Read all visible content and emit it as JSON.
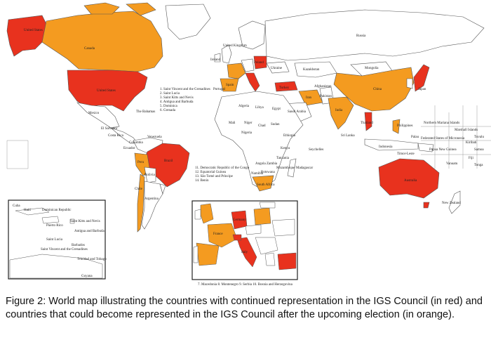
{
  "caption": "Figure 2: World map illustrating the countries with continued representation in the IGS Council (in red) and countries that could become represented in the IGS Council after the upcoming election (in orange).",
  "legend": {
    "red_meaning": "continued representation",
    "orange_meaning": "could become represented"
  },
  "colors": {
    "red": "#e8321e",
    "orange": "#f49b20",
    "land": "#ffffff",
    "border": "#555555"
  },
  "country_labels": [
    {
      "id": "usa",
      "text": "United States"
    },
    {
      "id": "canada",
      "text": "Canada"
    },
    {
      "id": "usa2",
      "text": "United States"
    },
    {
      "id": "russia",
      "text": "Russia"
    },
    {
      "id": "mongolia",
      "text": "Mongolia"
    },
    {
      "id": "china",
      "text": "China"
    },
    {
      "id": "kazakhstan",
      "text": "Kazakhstan"
    },
    {
      "id": "japan",
      "text": "Japan"
    },
    {
      "id": "india",
      "text": "India"
    },
    {
      "id": "iran",
      "text": "Iran"
    },
    {
      "id": "brazil",
      "text": "Brazil"
    },
    {
      "id": "argentina",
      "text": "Argentina"
    },
    {
      "id": "bolivia",
      "text": "Bolivia"
    },
    {
      "id": "peru",
      "text": "Peru"
    },
    {
      "id": "chile",
      "text": "Chile"
    },
    {
      "id": "colombia",
      "text": "Colombia"
    },
    {
      "id": "venezuela",
      "text": "Venezuela"
    },
    {
      "id": "australia",
      "text": "Australia"
    },
    {
      "id": "newzealand",
      "text": "New Zealand"
    },
    {
      "id": "southafrica",
      "text": "South Africa"
    },
    {
      "id": "algeria",
      "text": "Algeria"
    },
    {
      "id": "libya",
      "text": "Libya"
    },
    {
      "id": "egypt",
      "text": "Egypt"
    },
    {
      "id": "sudan",
      "text": "Sudan"
    },
    {
      "id": "mali",
      "text": "Mali"
    },
    {
      "id": "niger",
      "text": "Niger"
    },
    {
      "id": "chad",
      "text": "Chad"
    },
    {
      "id": "ethiopia",
      "text": "Ethiopia"
    },
    {
      "id": "kenya",
      "text": "Kenya"
    },
    {
      "id": "tanzania",
      "text": "Tanzania"
    },
    {
      "id": "angola",
      "text": "Angola"
    },
    {
      "id": "namibia",
      "text": "Namibia"
    },
    {
      "id": "botswana",
      "text": "Botswana"
    },
    {
      "id": "mozambique",
      "text": "Mozambique"
    },
    {
      "id": "zambia",
      "text": "Zambia"
    },
    {
      "id": "madagascar",
      "text": "Madagascar"
    },
    {
      "id": "nigeria",
      "text": "Nigeria"
    },
    {
      "id": "ukraine",
      "text": "Ukraine"
    },
    {
      "id": "poland",
      "text": "Poland"
    },
    {
      "id": "spain",
      "text": "Spain"
    },
    {
      "id": "portugal",
      "text": "Portugal"
    },
    {
      "id": "uk",
      "text": "United Kingdom"
    },
    {
      "id": "ireland",
      "text": "Ireland"
    },
    {
      "id": "turkey",
      "text": "Turkey"
    },
    {
      "id": "saudi",
      "text": "Saudi Arabia"
    },
    {
      "id": "pakistan",
      "text": "Pakistan"
    },
    {
      "id": "afghanistan",
      "text": "Afghanistan"
    },
    {
      "id": "thailand",
      "text": "Thailand"
    },
    {
      "id": "philippines",
      "text": "Philippines"
    },
    {
      "id": "indonesia",
      "text": "Indonesia"
    },
    {
      "id": "png",
      "text": "Papua New Guinea"
    },
    {
      "id": "mexico",
      "text": "Mexico"
    },
    {
      "id": "cuba",
      "text": "Cuba"
    },
    {
      "id": "haiti",
      "text": "Haiti"
    },
    {
      "id": "domrep",
      "text": "Dominican Republic"
    },
    {
      "id": "puertorico",
      "text": "Puerto Rico"
    },
    {
      "id": "stkitts",
      "text": "Saint Kitts and Nevis"
    },
    {
      "id": "antigua",
      "text": "Antigua and Barbuda"
    },
    {
      "id": "stlucia",
      "text": "Saint Lucia"
    },
    {
      "id": "barbados",
      "text": "Barbados"
    },
    {
      "id": "stvincent",
      "text": "Saint Vincent and the Grenadines"
    },
    {
      "id": "trinidad",
      "text": "Trinidad and Tobago"
    },
    {
      "id": "guyana",
      "text": "Guyana"
    },
    {
      "id": "ecuador",
      "text": "Ecuador"
    },
    {
      "id": "bahamas",
      "text": "The Bahamas"
    },
    {
      "id": "eldorado",
      "text": "El Salvador"
    },
    {
      "id": "costarica",
      "text": "Costa Rica"
    },
    {
      "id": "srilanka",
      "text": "Sri Lanka"
    },
    {
      "id": "seychelles",
      "text": "Seychelles"
    },
    {
      "id": "nmarianas",
      "text": "Northern Mariana Islands"
    },
    {
      "id": "marshall",
      "text": "Marshall Islands"
    },
    {
      "id": "micronesia",
      "text": "Federated States of Micronesia"
    },
    {
      "id": "kiribati",
      "text": "Kiribati"
    },
    {
      "id": "palau",
      "text": "Palau"
    },
    {
      "id": "fiji",
      "text": "Fiji"
    },
    {
      "id": "vanuatu",
      "text": "Vanuatu"
    },
    {
      "id": "tonga",
      "text": "Tonga"
    },
    {
      "id": "samoa",
      "text": "Samoa"
    },
    {
      "id": "tuvalu",
      "text": "Tuvalu"
    },
    {
      "id": "timor",
      "text": "Timor-Leste"
    },
    {
      "id": "italy",
      "text": "Italy"
    },
    {
      "id": "germany",
      "text": "Germany"
    },
    {
      "id": "france",
      "text": "France"
    }
  ],
  "caribbean_list": [
    "1. Saint Vincent and the Grenadines",
    "2. Saint Lucia",
    "3. Saint Kitts and Nevis",
    "4. Antigua and Barbuda",
    "5. Dominica",
    "6. Grenada"
  ],
  "africa_list": [
    "11. Democratic Republic of the Congo",
    "12. Equatorial Guinea",
    "13. São Tomé and Príncipe",
    "14. Benin"
  ],
  "europe_footnote": "7. Macedonia   8. Montenegro   9. Serbia   10. Bosnia and Herzegovina"
}
